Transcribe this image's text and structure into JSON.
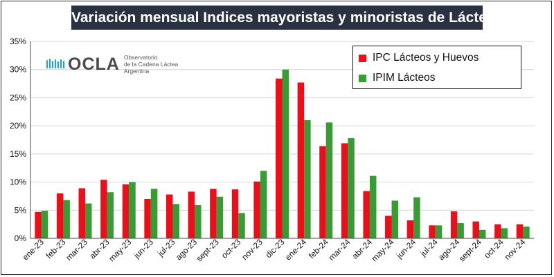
{
  "colors": {
    "ipc": "#e8101a",
    "ipim": "#3a9a35",
    "title_bg": "#2a3140",
    "logo_teal": "#29a3c4"
  },
  "logo": {
    "name": "OCLA",
    "line1": "Observatorio",
    "line2": "de la Cadena Láctea",
    "line3": "Argentina"
  },
  "chart_data": {
    "type": "bar",
    "title": "Variación mensual Indices mayoristas y minoristas de Lácteos",
    "categories": [
      "ene-23",
      "feb-23",
      "mar-23",
      "abr-23",
      "may-23",
      "jun-23",
      "jul-23",
      "ago-23",
      "sept-23",
      "oct-23",
      "nov-23",
      "dic-23",
      "ene-24",
      "feb-24",
      "mar-24",
      "abr-24",
      "may-24",
      "jun-24",
      "jul-24",
      "ago-24",
      "sept-24",
      "oct-24",
      "nov-24"
    ],
    "series": [
      {
        "name": "IPC Lácteos y Huevos",
        "color": "#e8101a",
        "values": [
          4.7,
          8.0,
          8.9,
          10.4,
          9.6,
          7.0,
          7.8,
          8.3,
          8.8,
          8.7,
          10.1,
          28.4,
          27.7,
          16.4,
          16.9,
          8.4,
          4.0,
          3.2,
          2.3,
          4.8,
          3.0,
          2.5,
          2.5
        ]
      },
      {
        "name": "IPIM Lácteos",
        "color": "#3a9a35",
        "values": [
          4.9,
          6.8,
          6.2,
          8.2,
          10.0,
          8.8,
          6.1,
          5.9,
          7.4,
          4.5,
          12.0,
          30.0,
          21.0,
          20.6,
          17.8,
          11.1,
          6.7,
          7.3,
          2.3,
          2.7,
          1.5,
          1.8,
          2.1
        ]
      }
    ],
    "yticks": [
      "0%",
      "5%",
      "10%",
      "15%",
      "20%",
      "25%",
      "30%",
      "35%"
    ],
    "ylim": [
      0,
      35
    ],
    "grid": true,
    "legend": "top-right"
  }
}
